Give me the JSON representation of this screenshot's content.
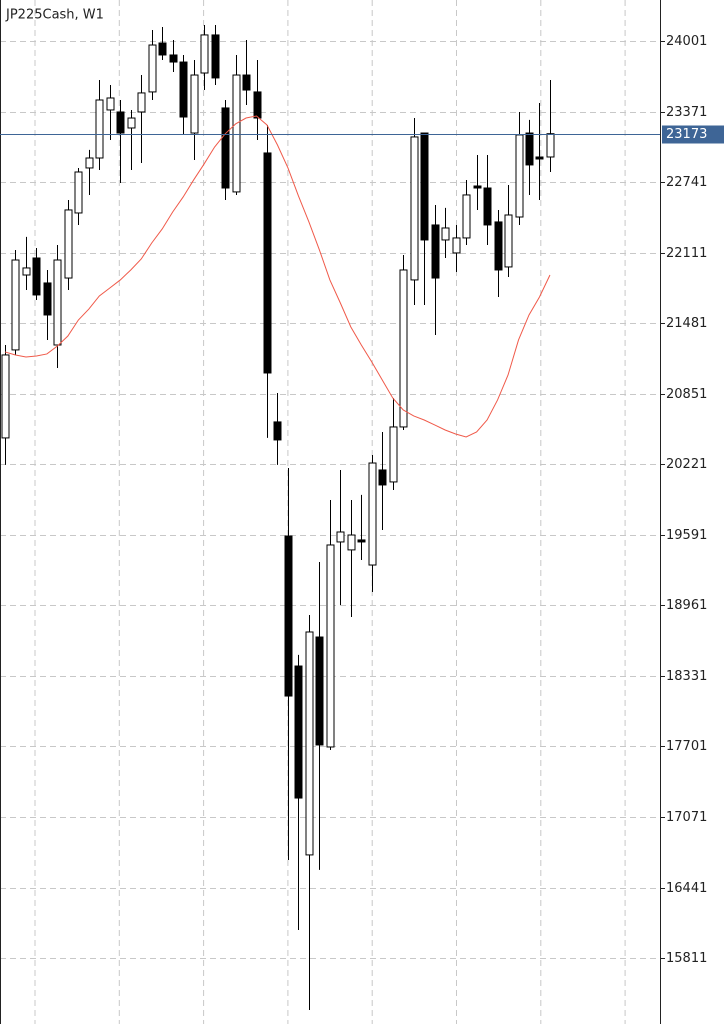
{
  "chart_data": {
    "type": "candlestick",
    "title": "JP225Cash, W1",
    "open": [
      20456,
      21242,
      21911,
      22063,
      21840,
      21286,
      21884,
      22465,
      22867,
      22956,
      23385,
      23367,
      23224,
      23367,
      23546,
      23983,
      23876,
      23813,
      23179,
      23715,
      24055,
      23403,
      22653,
      23697,
      23546,
      23001,
      20599,
      19580,
      18419,
      16732,
      18678,
      17696,
      19527,
      19456,
      19545,
      19321,
      20170,
      20063,
      20554,
      21867,
      23179,
      22358,
      22224,
      22108,
      22242,
      22706,
      22688,
      22385,
      21983,
      22429,
      23179,
      22965,
      22965
    ],
    "high": [
      21286,
      22134,
      22251,
      22152,
      21956,
      22179,
      22581,
      22867,
      23028,
      23653,
      23608,
      23474,
      23385,
      23697,
      24099,
      24126,
      24010,
      23876,
      23831,
      24144,
      24144,
      23474,
      23876,
      24010,
      23831,
      23251,
      20857,
      20188,
      18518,
      18875,
      19348,
      19902,
      20170,
      19902,
      19947,
      20304,
      20509,
      20813,
      22090,
      23313,
      23179,
      22536,
      22510,
      22358,
      22760,
      22983,
      22983,
      22492,
      22715,
      23367,
      23296,
      23447,
      23653
    ],
    "low": [
      20215,
      21197,
      21777,
      21688,
      21331,
      21081,
      21777,
      22358,
      22626,
      22849,
      23117,
      22733,
      22849,
      22911,
      23474,
      23831,
      23724,
      23162,
      22938,
      23563,
      23608,
      22581,
      22626,
      23429,
      23117,
      20456,
      20215,
      16687,
      16062,
      15347,
      16598,
      17669,
      18964,
      18857,
      19366,
      19080,
      19634,
      19991,
      20527,
      21643,
      21643,
      21375,
      22063,
      21938,
      22179,
      22492,
      22179,
      21715,
      21893,
      22358,
      22626,
      22581,
      22831
    ],
    "close": [
      21197,
      22045,
      21974,
      21733,
      21554,
      22045,
      22492,
      22831,
      22956,
      23474,
      23492,
      23179,
      23313,
      23537,
      23965,
      23876,
      23813,
      23322,
      23697,
      24055,
      23671,
      22688,
      23697,
      23563,
      23313,
      21036,
      20438,
      18151,
      17240,
      18723,
      17714,
      19500,
      19616,
      19589,
      19527,
      20232,
      20036,
      20554,
      21956,
      23144,
      22224,
      21884,
      22331,
      22242,
      22626,
      22688,
      22358,
      21956,
      22447,
      23162,
      22894,
      22947,
      23173
    ],
    "up_color": "#ffffff",
    "down_color": "#000000",
    "moving_average": {
      "color": "#f05a4a",
      "values": [
        21224,
        21197,
        21179,
        21188,
        21206,
        21277,
        21366,
        21509,
        21607,
        21724,
        21795,
        21867,
        21956,
        22054,
        22197,
        22322,
        22474,
        22608,
        22760,
        22903,
        23054,
        23171,
        23260,
        23313,
        23331,
        23251,
        23072,
        22867,
        22617,
        22385,
        22135,
        21867,
        21661,
        21447,
        21286,
        21134,
        20973,
        20813,
        20706,
        20652,
        20616,
        20572,
        20527,
        20491,
        20465,
        20509,
        20616,
        20795,
        21018,
        21331,
        21554,
        21715,
        21911
      ]
    },
    "current_price": 23173,
    "current_price_color": "#3e6596",
    "ylim": [
      15222,
      24367
    ],
    "yticks": [
      24001,
      23371,
      22741,
      22111,
      21481,
      20851,
      20221,
      19591,
      18961,
      18331,
      17701,
      17071,
      16441,
      15811
    ],
    "grid": true
  }
}
